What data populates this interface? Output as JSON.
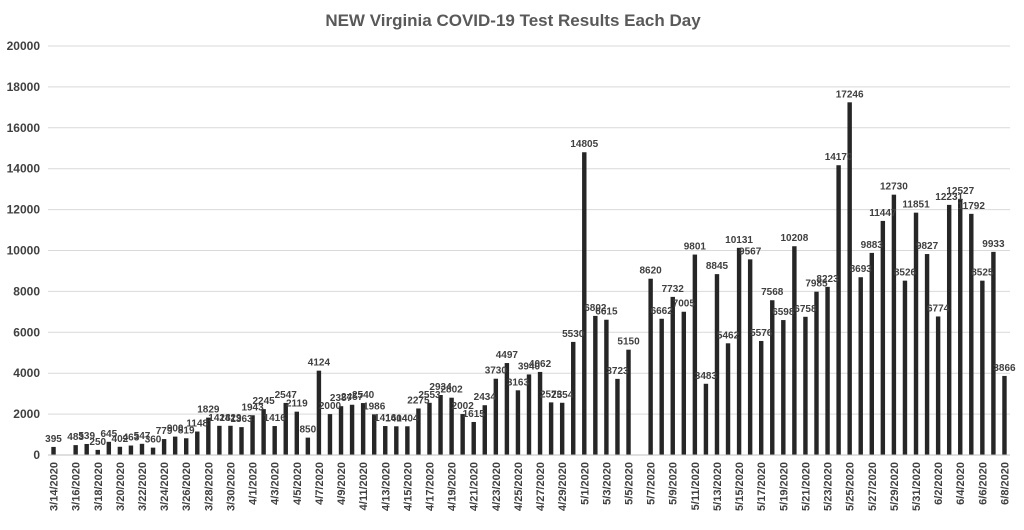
{
  "chart_data": {
    "type": "bar",
    "title": "NEW Virginia COVID-19 Test Results Each Day",
    "xlabel": "",
    "ylabel": "",
    "ylim": [
      0,
      20000
    ],
    "yticks": [
      0,
      2000,
      4000,
      6000,
      8000,
      10000,
      12000,
      14000,
      16000,
      18000,
      20000
    ],
    "grid": true,
    "legend": "none",
    "bar_color": "#262626",
    "x_start": "3/14/2020",
    "tick_labels": [
      "3/14/2020",
      "3/16/2020",
      "3/18/2020",
      "3/20/2020",
      "3/22/2020",
      "3/24/2020",
      "3/26/2020",
      "3/28/2020",
      "3/30/2020",
      "4/1/2020",
      "4/3/2020",
      "4/5/2020",
      "4/7/2020",
      "4/9/2020",
      "4/11/2020",
      "4/13/2020",
      "4/15/2020",
      "4/17/2020",
      "4/19/2020",
      "4/21/2020",
      "4/23/2020",
      "4/25/2020",
      "4/27/2020",
      "4/29/2020",
      "5/1/2020",
      "5/3/2020",
      "5/5/2020",
      "5/7/2020",
      "5/9/2020",
      "5/11/2020",
      "5/13/2020",
      "5/15/2020",
      "5/17/2020",
      "5/19/2020",
      "5/21/2020",
      "5/23/2020",
      "5/25/2020",
      "5/27/2020",
      "5/29/2020",
      "5/31/2020",
      "6/2/2020",
      "6/4/2020",
      "6/6/2020",
      "6/8/2020"
    ],
    "values": [
      395,
      0,
      483,
      539,
      250,
      645,
      402,
      463,
      547,
      360,
      779,
      900,
      819,
      1148,
      1829,
      1428,
      1429,
      1363,
      1943,
      2245,
      1416,
      2547,
      2119,
      850,
      4124,
      2000,
      2387,
      2457,
      2540,
      1986,
      1416,
      1404,
      1404,
      2275,
      2553,
      2934,
      2802,
      2002,
      1615,
      2434,
      3730,
      4497,
      3163,
      3940,
      4062,
      2573,
      2554,
      5530,
      14805,
      6802,
      6615,
      3723,
      5150,
      0,
      8620,
      6662,
      7732,
      7005,
      9801,
      3483,
      8845,
      5462,
      10131,
      9567,
      5576,
      7568,
      6598,
      10208,
      6758,
      7985,
      8223,
      14170,
      17246,
      8693,
      9883,
      11447,
      12730,
      8526,
      11851,
      9827,
      6774,
      12231,
      12527,
      11792,
      8525,
      9933,
      3866
    ],
    "data_labels": [
      "395",
      "",
      "483",
      "539",
      "250",
      "645",
      "402",
      "463",
      "547",
      "360",
      "779",
      "900",
      "819",
      "1148",
      "1829",
      "1428",
      "1429",
      "1363",
      "1943",
      "2245",
      "1416",
      "2547",
      "2119",
      "850",
      "4124",
      "2000",
      "2387",
      "2457",
      "2540",
      "1986",
      "1416",
      "1404",
      "1404",
      "2275",
      "2553",
      "2934",
      "2802",
      "2002",
      "1615",
      "2434",
      "3730",
      "4497",
      "3163",
      "3940",
      "4062",
      "2573",
      "2554",
      "5530",
      "14805",
      "6802",
      "6615",
      "3723",
      "5150",
      "",
      "8620",
      "6662",
      "7732",
      "7005",
      "9801",
      "3483",
      "8845",
      "5462",
      "10131",
      "9567",
      "5576",
      "7568",
      "6598",
      "10208",
      "6758",
      "7985",
      "8223",
      "14170",
      "17246",
      "8693",
      "9883",
      "11447",
      "12730",
      "8526",
      "11851",
      "9827",
      "6774",
      "12231",
      "12527",
      "11792",
      "8525",
      "9933",
      "3866"
    ]
  }
}
